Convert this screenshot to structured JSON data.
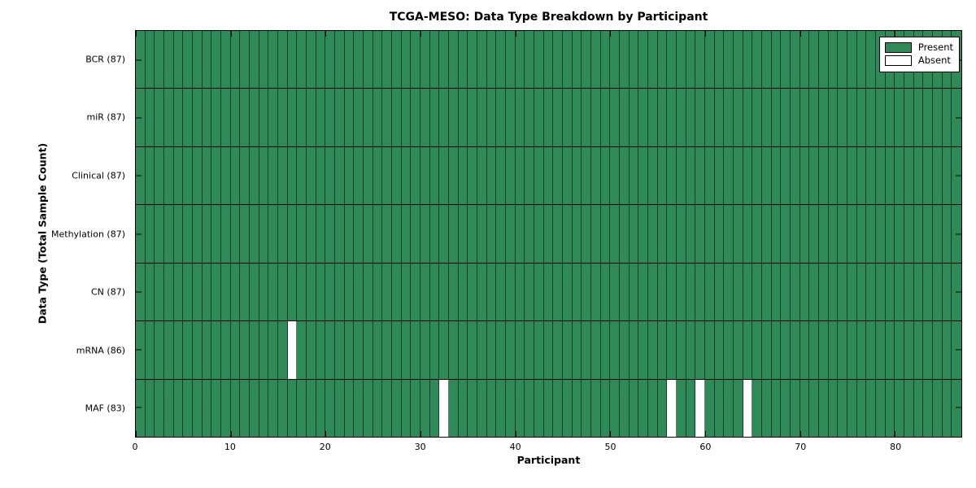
{
  "title": "TCGA-MESO: Data Type Breakdown by Participant",
  "chart_data": {
    "type": "heatmap",
    "title": "TCGA-MESO: Data Type Breakdown by Participant",
    "xlabel": "Participant",
    "ylabel": "Data Type (Total Sample Count)",
    "n_participants": 87,
    "xlim": [
      0,
      87
    ],
    "x_ticks": [
      0,
      10,
      20,
      30,
      40,
      50,
      60,
      70,
      80
    ],
    "grid": "cell-borders",
    "rows": [
      {
        "label": "BCR",
        "total": 87,
        "tick_label": "BCR (87)",
        "absent_participants": []
      },
      {
        "label": "miR",
        "total": 87,
        "tick_label": "miR (87)",
        "absent_participants": []
      },
      {
        "label": "Clinical",
        "total": 87,
        "tick_label": "Clinical (87)",
        "absent_participants": []
      },
      {
        "label": "Methylation",
        "total": 87,
        "tick_label": "Methylation (87)",
        "absent_participants": []
      },
      {
        "label": "CN",
        "total": 87,
        "tick_label": "CN (87)",
        "absent_participants": []
      },
      {
        "label": "mRNA",
        "total": 86,
        "tick_label": "mRNA (86)",
        "absent_participants": [
          16
        ]
      },
      {
        "label": "MAF",
        "total": 83,
        "tick_label": "MAF (83)",
        "absent_participants": [
          32,
          56,
          59,
          64
        ]
      }
    ],
    "legend": {
      "position": "upper-right",
      "items": [
        {
          "label": "Present",
          "color": "#2e8b57"
        },
        {
          "label": "Absent",
          "color": "#ffffff"
        }
      ]
    },
    "colors": {
      "present": "#2e8b57",
      "absent": "#ffffff",
      "cell_border": "rgba(0,0,0,0.55)",
      "axis": "#000000",
      "background": "#ffffff"
    }
  }
}
